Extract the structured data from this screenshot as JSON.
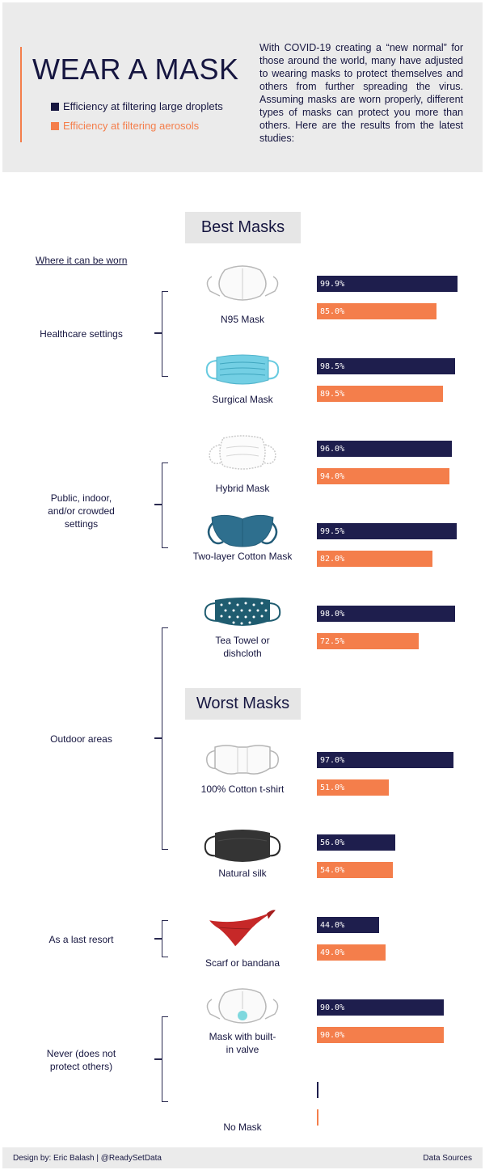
{
  "header": {
    "title": "WEAR A MASK",
    "legend": [
      {
        "label": "Efficiency at filtering large droplets",
        "color": "#161640"
      },
      {
        "label": "Efficiency at filtering aerosols",
        "color": "#f47e4b"
      }
    ],
    "intro": "With COVID-19 creating a “new normal” for those around the world, many have adjusted to wearing masks to protect themselves and others from further spreading the virus. Assuming masks are worn properly, different types of masks can protect you more than others. Here are the results from the latest studies:"
  },
  "sections": {
    "best": "Best Masks",
    "worst": "Worst Masks",
    "worn_header": "Where it can be worn"
  },
  "groups": [
    {
      "label": "Healthcare settings"
    },
    {
      "label": "Public, indoor, and/or crowded settings"
    },
    {
      "label": "Outdoor areas"
    },
    {
      "label": "As a last resort"
    },
    {
      "label": "Never (does not protect others)"
    }
  ],
  "chart_data": {
    "type": "bar",
    "categories": [
      "N95 Mask",
      "Surgical Mask",
      "Hybrid Mask",
      "Two-layer Cotton Mask",
      "Tea Towel or dishcloth",
      "100% Cotton t-shirt",
      "Natural silk",
      "Scarf or bandana",
      "Mask with built-in valve",
      "No Mask"
    ],
    "series": [
      {
        "name": "Efficiency at filtering large droplets",
        "values": [
          99.9,
          98.5,
          96.0,
          99.5,
          98.0,
          97.0,
          56.0,
          44.0,
          90.0,
          0.0
        ]
      },
      {
        "name": "Efficiency at filtering aerosols",
        "values": [
          85.0,
          89.5,
          94.0,
          82.0,
          72.5,
          51.0,
          54.0,
          49.0,
          90.0,
          0.0
        ]
      }
    ],
    "labels": {
      "droplets": [
        "99.9%",
        "98.5%",
        "96.0%",
        "99.5%",
        "98.0%",
        "97.0%",
        "56.0%",
        "44.0%",
        "90.0%",
        ""
      ],
      "aerosols": [
        "85.0%",
        "89.5%",
        "94.0%",
        "82.0%",
        "72.5%",
        "51.0%",
        "54.0%",
        "49.0%",
        "90.0%",
        ""
      ]
    },
    "xlim": [
      0,
      100
    ],
    "colors": {
      "droplets": "#1e1e4d",
      "aerosols": "#f47e4b"
    },
    "grid": false,
    "legend": "top-left"
  },
  "masks": [
    {
      "name": "N95 Mask",
      "icon": "n95-mask-icon"
    },
    {
      "name": "Surgical Mask",
      "icon": "surgical-mask-icon"
    },
    {
      "name": "Hybrid Mask",
      "icon": "hybrid-mask-icon"
    },
    {
      "name": "Two-layer Cotton Mask",
      "icon": "cotton-mask-icon"
    },
    {
      "name": "Tea Towel or dishcloth",
      "icon": "tea-towel-mask-icon"
    },
    {
      "name": "100% Cotton t-shirt",
      "icon": "tshirt-mask-icon"
    },
    {
      "name": "Natural silk",
      "icon": "silk-mask-icon"
    },
    {
      "name": "Scarf or bandana",
      "icon": "bandana-icon"
    },
    {
      "name": "Mask with built-in valve",
      "icon": "valve-mask-icon"
    },
    {
      "name": "No Mask",
      "icon": ""
    }
  ],
  "footer": {
    "credit": "Design by: Eric Balash | @ReadySetData",
    "sources": "Data Sources"
  }
}
